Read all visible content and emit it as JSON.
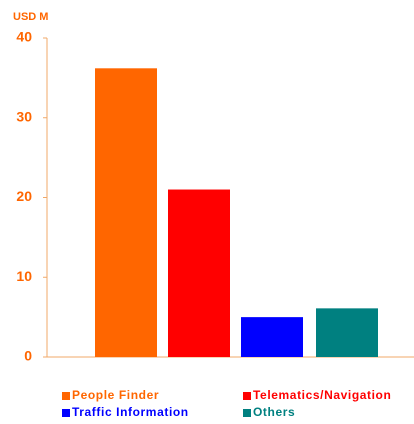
{
  "chart_data": {
    "type": "bar",
    "ylabel": "USD M",
    "series": [
      {
        "name": "People Finder",
        "color": "#ff6600",
        "values": [
          36.2
        ]
      },
      {
        "name": "Telematics/Navigation",
        "color": "#ff0000",
        "values": [
          21
        ]
      },
      {
        "name": "Traffic Information",
        "color": "#0000ff",
        "values": [
          5
        ]
      },
      {
        "name": "Others",
        "color": "#008080",
        "values": [
          6.1
        ]
      }
    ],
    "ylim": [
      0,
      40
    ],
    "yticks": [
      0,
      10,
      20,
      30,
      40
    ],
    "grid": false
  }
}
